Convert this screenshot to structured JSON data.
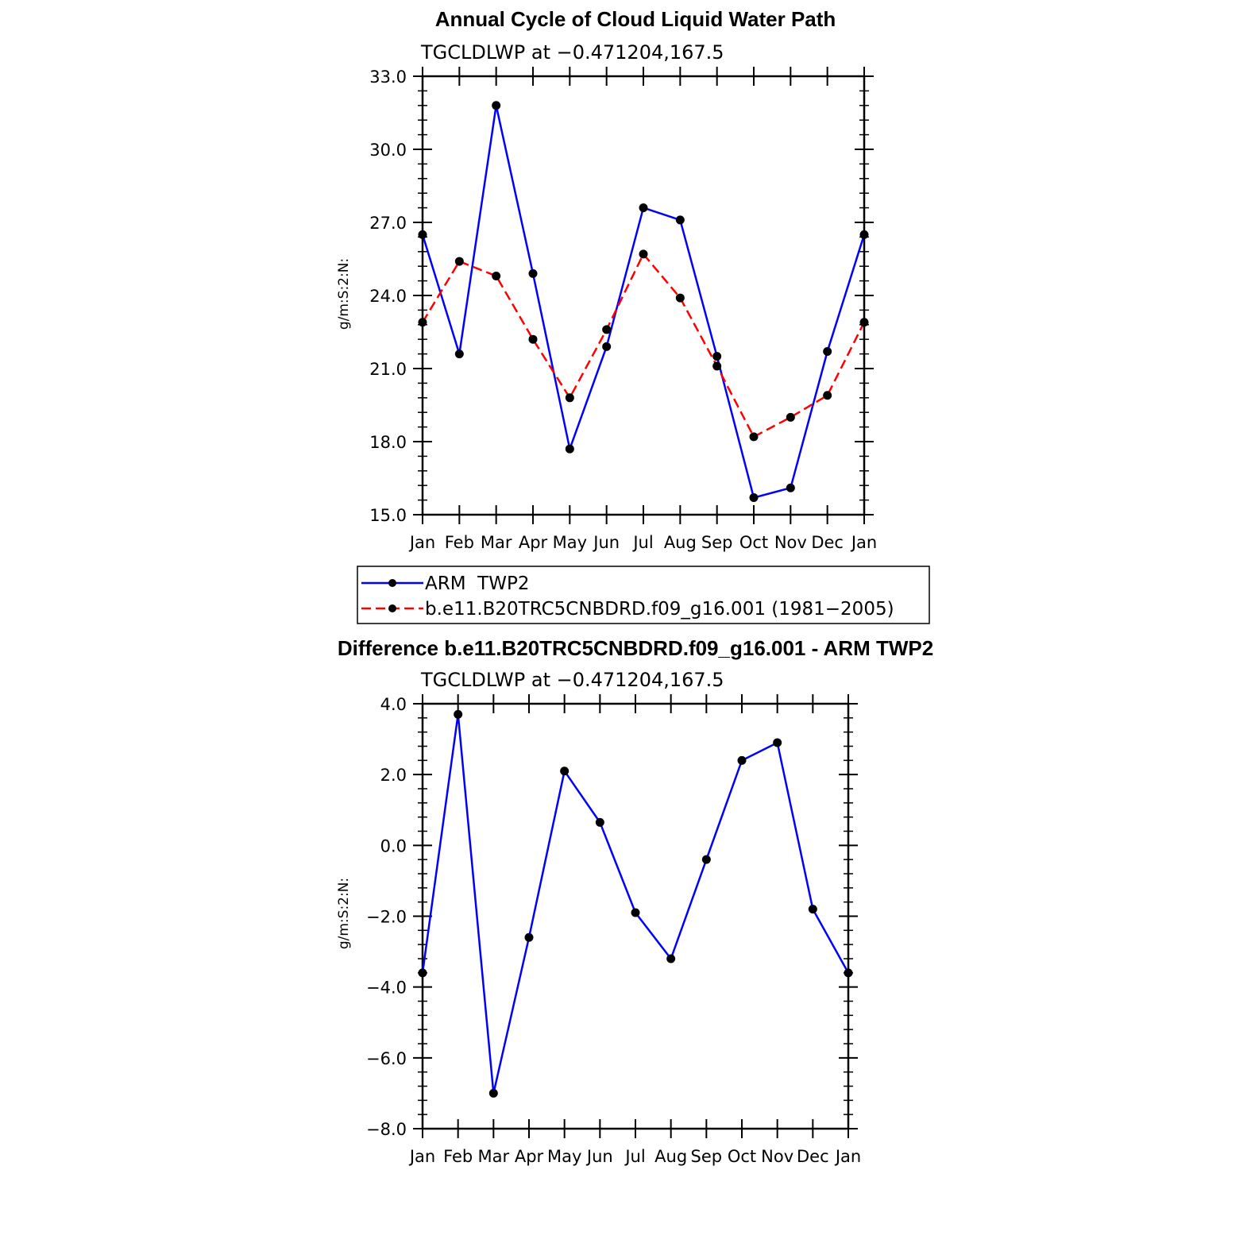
{
  "colors": {
    "obs": "#0000ff",
    "model": "#ff0000",
    "diff": "#0000ff",
    "marker": "#000000"
  },
  "chart_data": [
    {
      "type": "line",
      "title": "Annual Cycle of Cloud Liquid Water Path",
      "subtitle": "TGCLDLWP at −0.471204,167.5",
      "ylabel": "g/m:S:2:N:",
      "xlabel": "",
      "categories": [
        "Jan",
        "Feb",
        "Mar",
        "Apr",
        "May",
        "Jun",
        "Jul",
        "Aug",
        "Sep",
        "Oct",
        "Nov",
        "Dec",
        "Jan"
      ],
      "ylim": [
        15.0,
        33.0
      ],
      "yticks": [
        15.0,
        18.0,
        21.0,
        24.0,
        27.0,
        30.0,
        33.0
      ],
      "ytick_labels": [
        "15.0",
        "18.0",
        "21.0",
        "24.0",
        "27.0",
        "30.0",
        "33.0"
      ],
      "series": [
        {
          "name": "ARM  TWP2",
          "style": "solid",
          "values": [
            26.5,
            21.6,
            31.8,
            24.9,
            17.7,
            21.9,
            27.6,
            27.1,
            21.5,
            15.7,
            16.1,
            21.7,
            26.5
          ]
        },
        {
          "name": "b.e11.B20TRC5CNBDRD.f09_g16.001 (1981−2005)",
          "style": "dashed",
          "values": [
            22.9,
            25.4,
            24.8,
            22.2,
            19.8,
            22.6,
            25.7,
            23.9,
            21.1,
            18.2,
            19.0,
            19.9,
            22.9
          ]
        }
      ],
      "legend": "below"
    },
    {
      "type": "line",
      "title": "Difference b.e11.B20TRC5CNBDRD.f09_g16.001 - ARM TWP2",
      "subtitle": "TGCLDLWP at −0.471204,167.5",
      "ylabel": "g/m:S:2:N:",
      "xlabel": "",
      "categories": [
        "Jan",
        "Feb",
        "Mar",
        "Apr",
        "May",
        "Jun",
        "Jul",
        "Aug",
        "Sep",
        "Oct",
        "Nov",
        "Dec",
        "Jan"
      ],
      "ylim": [
        -8.0,
        4.0
      ],
      "yticks": [
        -8.0,
        -6.0,
        -4.0,
        -2.0,
        0.0,
        2.0,
        4.0
      ],
      "ytick_labels": [
        "−8.0",
        "−6.0",
        "−4.0",
        "−2.0",
        "0.0",
        "2.0",
        "4.0"
      ],
      "series": [
        {
          "style": "solid",
          "values": [
            -3.6,
            3.7,
            -7.0,
            -2.6,
            2.1,
            0.65,
            -1.9,
            -3.2,
            -0.4,
            2.4,
            2.9,
            -1.8,
            -3.6
          ]
        }
      ]
    }
  ]
}
